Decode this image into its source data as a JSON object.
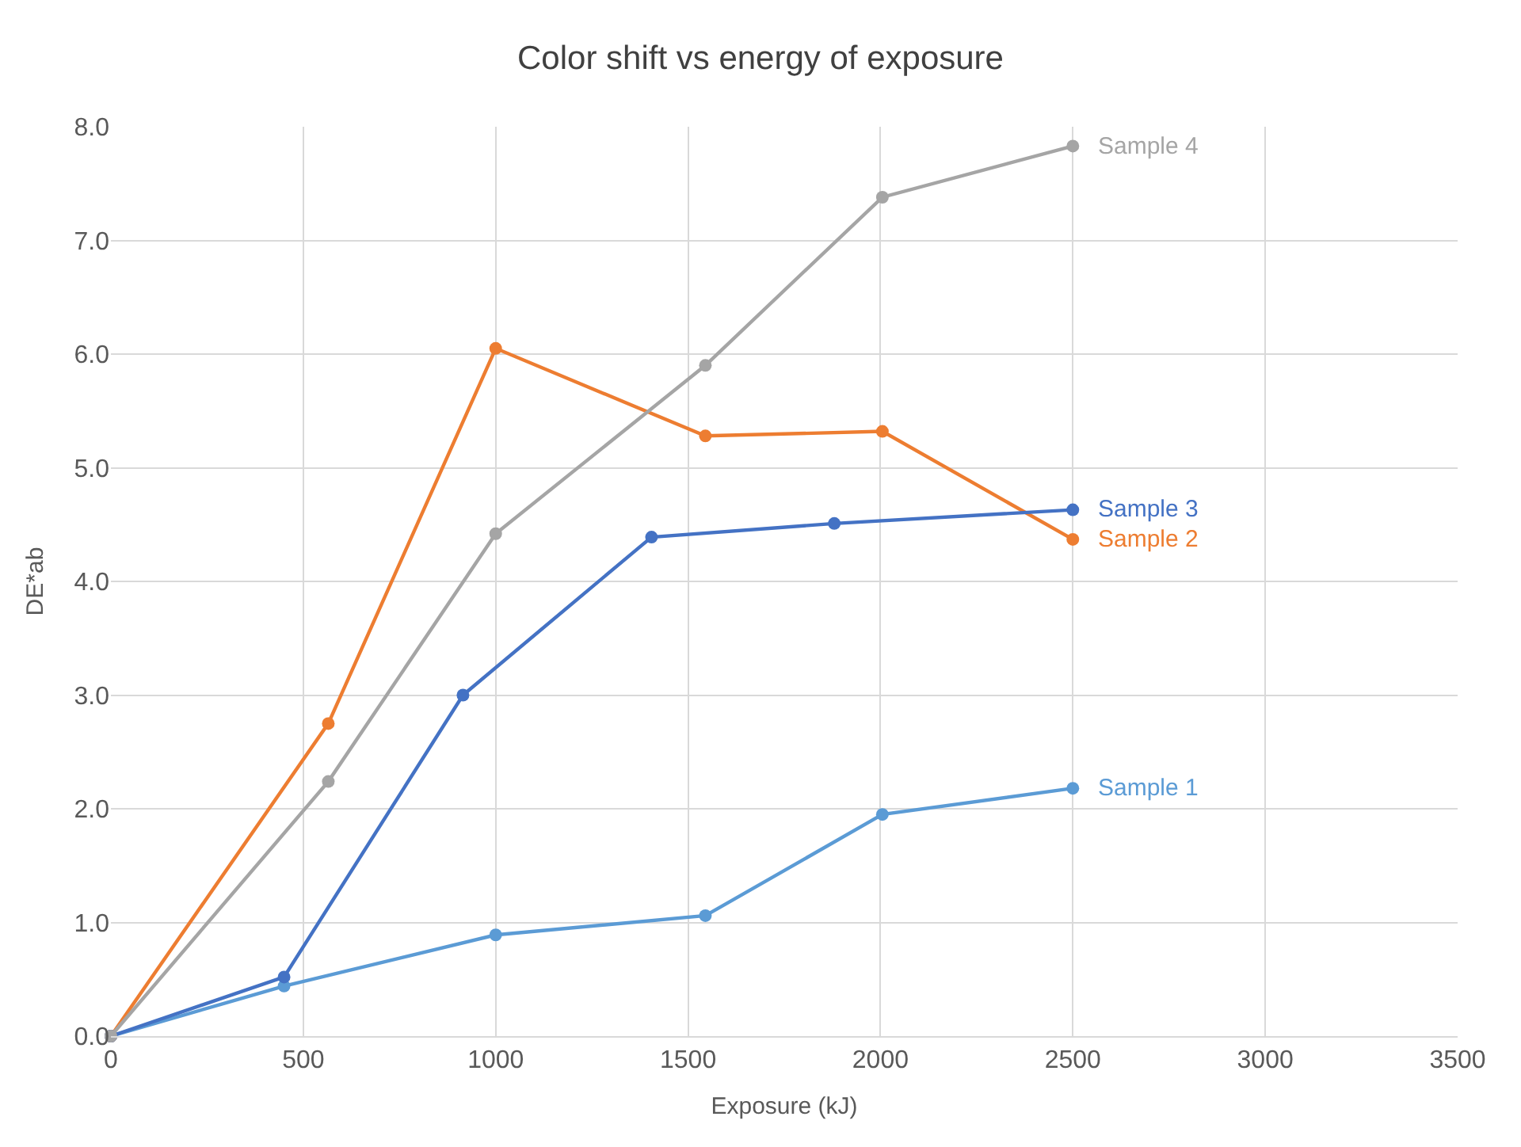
{
  "chart_data": {
    "type": "line",
    "title": "Color shift vs energy of exposure",
    "xlabel": "Exposure (kJ)",
    "ylabel": "DE*ab",
    "xlim": [
      0,
      3500
    ],
    "xticks": [
      0,
      500,
      1000,
      1500,
      2000,
      2500,
      3000,
      3500
    ],
    "ylim": [
      0,
      8
    ],
    "yticks": [
      {
        "value": 0,
        "label": "0.0"
      },
      {
        "value": 1,
        "label": "1.0"
      },
      {
        "value": 2,
        "label": "2.0"
      },
      {
        "value": 3,
        "label": "3.0"
      },
      {
        "value": 4,
        "label": "4.0"
      },
      {
        "value": 5,
        "label": "5.0"
      },
      {
        "value": 6,
        "label": "6.0"
      },
      {
        "value": 7,
        "label": "7.0"
      },
      {
        "value": 8,
        "label": "8.0"
      }
    ],
    "grid": true,
    "legend": false,
    "marker": "circle",
    "line_style": "solid",
    "series": [
      {
        "name": "Sample 1",
        "color": "#5b9bd5",
        "x": [
          0,
          450,
          1000,
          1545,
          2005,
          2500
        ],
        "values": [
          0,
          0.44,
          0.89,
          1.06,
          1.95,
          2.18
        ]
      },
      {
        "name": "Sample 2",
        "color": "#ed7d31",
        "x": [
          0,
          565,
          1000,
          1545,
          2005,
          2500
        ],
        "values": [
          0,
          2.75,
          6.05,
          5.28,
          5.32,
          4.37
        ]
      },
      {
        "name": "Sample 3",
        "color": "#4472c4",
        "x": [
          0,
          450,
          915,
          1405,
          1880,
          2500
        ],
        "values": [
          0,
          0.52,
          3.0,
          4.39,
          4.51,
          4.63
        ]
      },
      {
        "name": "Sample 4",
        "color": "#a5a5a5",
        "x": [
          0,
          565,
          1000,
          1545,
          2005,
          2500
        ],
        "values": [
          0,
          2.24,
          4.42,
          5.9,
          7.38,
          7.83
        ]
      }
    ]
  }
}
